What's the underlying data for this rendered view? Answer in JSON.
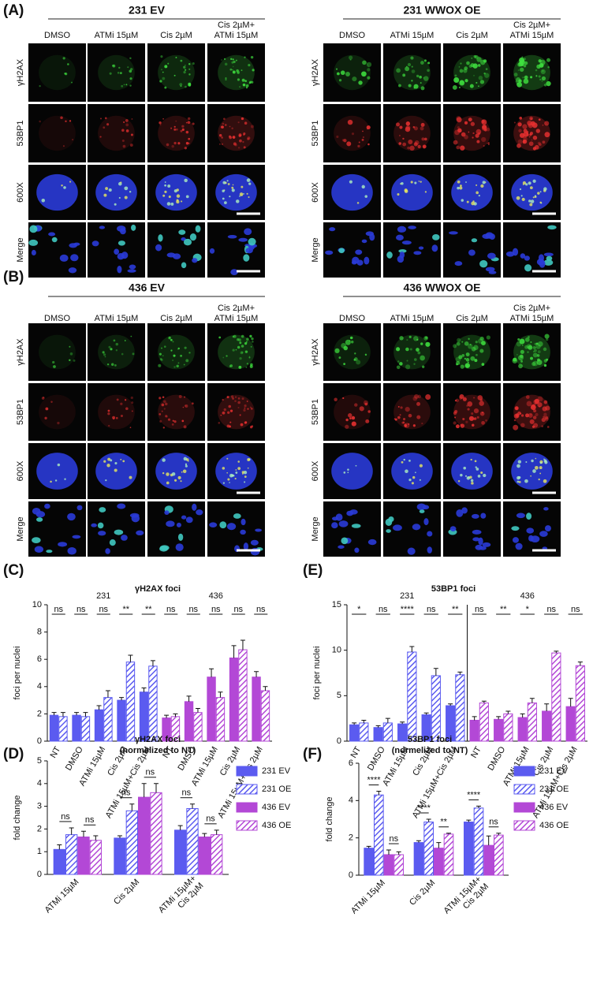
{
  "figure": {
    "panels": [
      {
        "label": "(A)",
        "blocks": [
          {
            "title": "231 EV"
          },
          {
            "title": "231 WWOX OE"
          }
        ]
      },
      {
        "label": "(B)",
        "blocks": [
          {
            "title": "436 EV"
          },
          {
            "title": "436 WWOX OE"
          }
        ]
      }
    ],
    "columns": [
      [
        "DMSO"
      ],
      [
        "ATMi 15µM"
      ],
      [
        "Cis 2µM"
      ],
      [
        "Cis 2µM+",
        "ATMi 15µM"
      ]
    ],
    "rows": [
      "γH2AX",
      "53BP1",
      "600X",
      "Merge"
    ],
    "row_colors": [
      "#22aa22",
      "#e02020",
      "#222222",
      "#222222"
    ]
  },
  "chart_data": [
    {
      "type": "bar",
      "label": "(C)",
      "title": "γH2AX foci",
      "groups": [
        "231",
        "436"
      ],
      "ylabel": "foci per nuclei",
      "categories": [
        "NT",
        "DMSO",
        "ATMi 15µM",
        "Cis 2µM",
        "ATMi 15µM+Cis 2µM",
        "NT",
        "DMSO",
        "ATMi 15µM",
        "Cis 2µM",
        "ATMi 15µM+Cis 2µM"
      ],
      "series": [
        {
          "color": "#5b5bf0",
          "hatch": false,
          "values": [
            1.9,
            1.9,
            2.3,
            3.0,
            3.6,
            null,
            null,
            null,
            null,
            null
          ],
          "errors": [
            0.2,
            0.2,
            0.3,
            0.2,
            0.3,
            null,
            null,
            null,
            null,
            null
          ]
        },
        {
          "color": "#5b5bf0",
          "hatch": true,
          "values": [
            1.8,
            1.8,
            3.2,
            5.8,
            5.5,
            null,
            null,
            null,
            null,
            null
          ],
          "errors": [
            0.3,
            0.3,
            0.5,
            0.5,
            0.4,
            null,
            null,
            null,
            null,
            null
          ]
        },
        {
          "color": "#b348d6",
          "hatch": false,
          "values": [
            null,
            null,
            null,
            null,
            null,
            1.7,
            2.9,
            4.7,
            6.1,
            4.7
          ],
          "errors": [
            null,
            null,
            null,
            null,
            null,
            0.2,
            0.4,
            0.6,
            0.9,
            0.4
          ]
        },
        {
          "color": "#b348d6",
          "hatch": true,
          "values": [
            null,
            null,
            null,
            null,
            null,
            1.8,
            2.1,
            3.2,
            6.7,
            3.7
          ],
          "errors": [
            null,
            null,
            null,
            null,
            null,
            0.2,
            0.3,
            0.4,
            0.7,
            0.3
          ]
        }
      ],
      "significance": [
        "ns",
        "ns",
        "ns",
        "**",
        "**",
        "ns",
        "ns",
        "ns",
        "ns",
        "ns"
      ],
      "ylim": [
        0,
        10
      ],
      "yticks": [
        0,
        2,
        4,
        6,
        8,
        10
      ]
    },
    {
      "type": "bar",
      "label": "(E)",
      "title": "53BP1 foci",
      "groups": [
        "231",
        "436"
      ],
      "ylabel": "foci per nuclei",
      "divider": true,
      "categories": [
        "NT",
        "DMSO",
        "ATMi 15µM",
        "Cis 2µM",
        "ATMi 15µM+Cis 2µM",
        "NT",
        "DMSO",
        "ATMi 15µM",
        "Cis 2µM",
        "ATMi 15µM+Cis 2µM"
      ],
      "series": [
        {
          "color": "#5b5bf0",
          "hatch": false,
          "values": [
            1.8,
            1.5,
            1.9,
            2.9,
            3.9,
            null,
            null,
            null,
            null,
            null
          ],
          "errors": [
            0.2,
            0.2,
            0.2,
            0.2,
            0.2,
            null,
            null,
            null,
            null,
            null
          ]
        },
        {
          "color": "#5b5bf0",
          "hatch": true,
          "values": [
            2.0,
            2.0,
            9.8,
            7.2,
            7.3,
            null,
            null,
            null,
            null,
            null
          ],
          "errors": [
            0.3,
            0.5,
            0.6,
            0.8,
            0.3,
            null,
            null,
            null,
            null,
            null
          ]
        },
        {
          "color": "#b348d6",
          "hatch": false,
          "values": [
            null,
            null,
            null,
            null,
            null,
            2.3,
            2.4,
            2.6,
            3.3,
            3.8
          ],
          "errors": [
            null,
            null,
            null,
            null,
            null,
            0.4,
            0.3,
            0.4,
            0.8,
            0.9
          ]
        },
        {
          "color": "#b348d6",
          "hatch": true,
          "values": [
            null,
            null,
            null,
            null,
            null,
            4.2,
            3.0,
            4.2,
            9.7,
            8.3
          ],
          "errors": [
            null,
            null,
            null,
            null,
            null,
            0.2,
            0.3,
            0.5,
            0.2,
            0.4
          ]
        }
      ],
      "significance": [
        "*",
        "ns",
        "****",
        "ns",
        "**",
        "ns",
        "**",
        "*",
        "ns",
        "ns"
      ],
      "ylim": [
        0,
        15
      ],
      "yticks": [
        0,
        5,
        10,
        15
      ]
    },
    {
      "type": "bar",
      "label": "(D)",
      "title": [
        "γH2AX foci",
        "(normelized to NT)"
      ],
      "ylabel": "fold change",
      "legend": "right",
      "categories": [
        [
          "ATMi 15µM"
        ],
        [
          "Cis 2µM"
        ],
        [
          "ATMi 15µM+",
          "Cis 2µM"
        ]
      ],
      "series": [
        {
          "name": "231 EV",
          "color": "#5b5bf0",
          "hatch": false,
          "values": [
            1.1,
            1.6,
            1.95
          ],
          "errors": [
            0.2,
            0.1,
            0.2
          ]
        },
        {
          "name": "231 OE",
          "color": "#5b5bf0",
          "hatch": true,
          "values": [
            1.75,
            2.8,
            2.9
          ],
          "errors": [
            0.3,
            0.3,
            0.2
          ]
        },
        {
          "name": "436 EV",
          "color": "#b348d6",
          "hatch": false,
          "values": [
            1.65,
            3.4,
            1.65
          ],
          "errors": [
            0.25,
            0.6,
            0.15
          ]
        },
        {
          "name": "436 OE",
          "color": "#b348d6",
          "hatch": true,
          "values": [
            1.5,
            3.6,
            1.75
          ],
          "errors": [
            0.2,
            0.4,
            0.2
          ]
        }
      ],
      "significance": [
        [
          "ns",
          "ns"
        ],
        [
          "ns",
          "ns"
        ],
        [
          "ns",
          "ns"
        ]
      ],
      "ylim": [
        0,
        5
      ],
      "yticks": [
        0,
        1,
        2,
        3,
        4,
        5
      ]
    },
    {
      "type": "bar",
      "label": "(F)",
      "title": [
        "53BP1 foci",
        "(normelized to NT)"
      ],
      "ylabel": "fold change",
      "legend": "right",
      "categories": [
        [
          "ATMi 15µM"
        ],
        [
          "Cis 2µM"
        ],
        [
          "ATMi 15µM+",
          "Cis 2µM"
        ]
      ],
      "series": [
        {
          "name": "231 EV",
          "color": "#5b5bf0",
          "hatch": false,
          "values": [
            1.45,
            1.75,
            2.85
          ],
          "errors": [
            0.1,
            0.1,
            0.1
          ]
        },
        {
          "name": "231 OE",
          "color": "#5b5bf0",
          "hatch": true,
          "values": [
            4.3,
            2.85,
            3.6
          ],
          "errors": [
            0.2,
            0.15,
            0.1
          ]
        },
        {
          "name": "436 EV",
          "color": "#b348d6",
          "hatch": false,
          "values": [
            1.1,
            1.45,
            1.6
          ],
          "errors": [
            0.25,
            0.3,
            0.5
          ]
        },
        {
          "name": "436 OE",
          "color": "#b348d6",
          "hatch": true,
          "values": [
            1.1,
            2.2,
            2.15
          ],
          "errors": [
            0.15,
            0.05,
            0.1
          ]
        }
      ],
      "significance": [
        [
          "****",
          "ns"
        ],
        [
          "****",
          "**"
        ],
        [
          "****",
          "ns"
        ]
      ],
      "ylim": [
        0,
        6
      ],
      "yticks": [
        0,
        2,
        4,
        6
      ]
    }
  ]
}
